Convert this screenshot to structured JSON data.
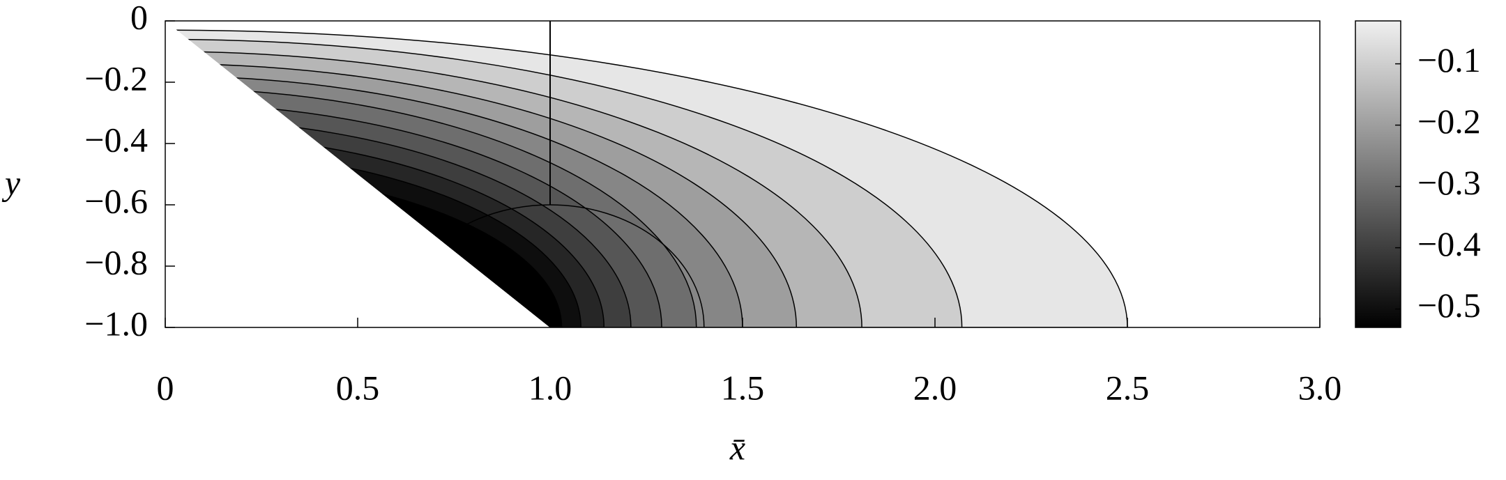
{
  "chart_data": {
    "type": "contour",
    "xlabel": "x̄",
    "ylabel": "y",
    "xlim": [
      0,
      3
    ],
    "ylim": [
      -1,
      0
    ],
    "xticks": [
      0,
      0.5,
      {
        "value": 1,
        "label": "1.0"
      },
      1.5,
      {
        "value": 2,
        "label": "2.0"
      },
      2.5,
      {
        "value": 3,
        "label": "3.0"
      }
    ],
    "yticks": [
      {
        "value": -1,
        "label": "−1.0"
      },
      {
        "value": -0.8,
        "label": "−0.8"
      },
      {
        "value": -0.6,
        "label": "−0.6"
      },
      {
        "value": -0.4,
        "label": "−0.4"
      },
      {
        "value": -0.2,
        "label": "−0.2"
      },
      0
    ],
    "clim": [
      -0.53,
      -0.03
    ],
    "cticks": [
      {
        "value": -0.1,
        "label": "−0.1"
      },
      {
        "value": -0.2,
        "label": "−0.2"
      },
      {
        "value": -0.3,
        "label": "−0.3"
      },
      {
        "value": -0.4,
        "label": "−0.4"
      },
      {
        "value": -0.5,
        "label": "−0.5"
      }
    ],
    "contours": [
      {
        "level": -0.05,
        "x_end": 2.5,
        "y_top": -0.03
      },
      {
        "level": -0.1,
        "x_end": 2.07,
        "y_top": -0.06
      },
      {
        "level": -0.15,
        "x_end": 1.81,
        "y_top": -0.1
      },
      {
        "level": -0.2,
        "x_end": 1.64,
        "y_top": -0.14
      },
      {
        "level": -0.25,
        "x_end": 1.5,
        "y_top": -0.18
      },
      {
        "level": -0.3,
        "x_end": 1.38,
        "y_top": -0.22
      },
      {
        "level": -0.35,
        "x_end": 1.29,
        "y_top": -0.27
      },
      {
        "level": -0.4,
        "x_end": 1.21,
        "y_top": -0.32
      },
      {
        "level": -0.45,
        "x_end": 1.14,
        "y_top": -0.37
      },
      {
        "level": -0.5,
        "x_end": 1.08,
        "y_top": -0.42
      },
      {
        "level": -0.55,
        "x_end": 1.03,
        "y_top": -0.48
      }
    ],
    "circle": {
      "cx": 1,
      "cy": -1,
      "r": 0.4
    },
    "vline": {
      "x": 1,
      "y": [
        0,
        -0.6
      ]
    }
  }
}
